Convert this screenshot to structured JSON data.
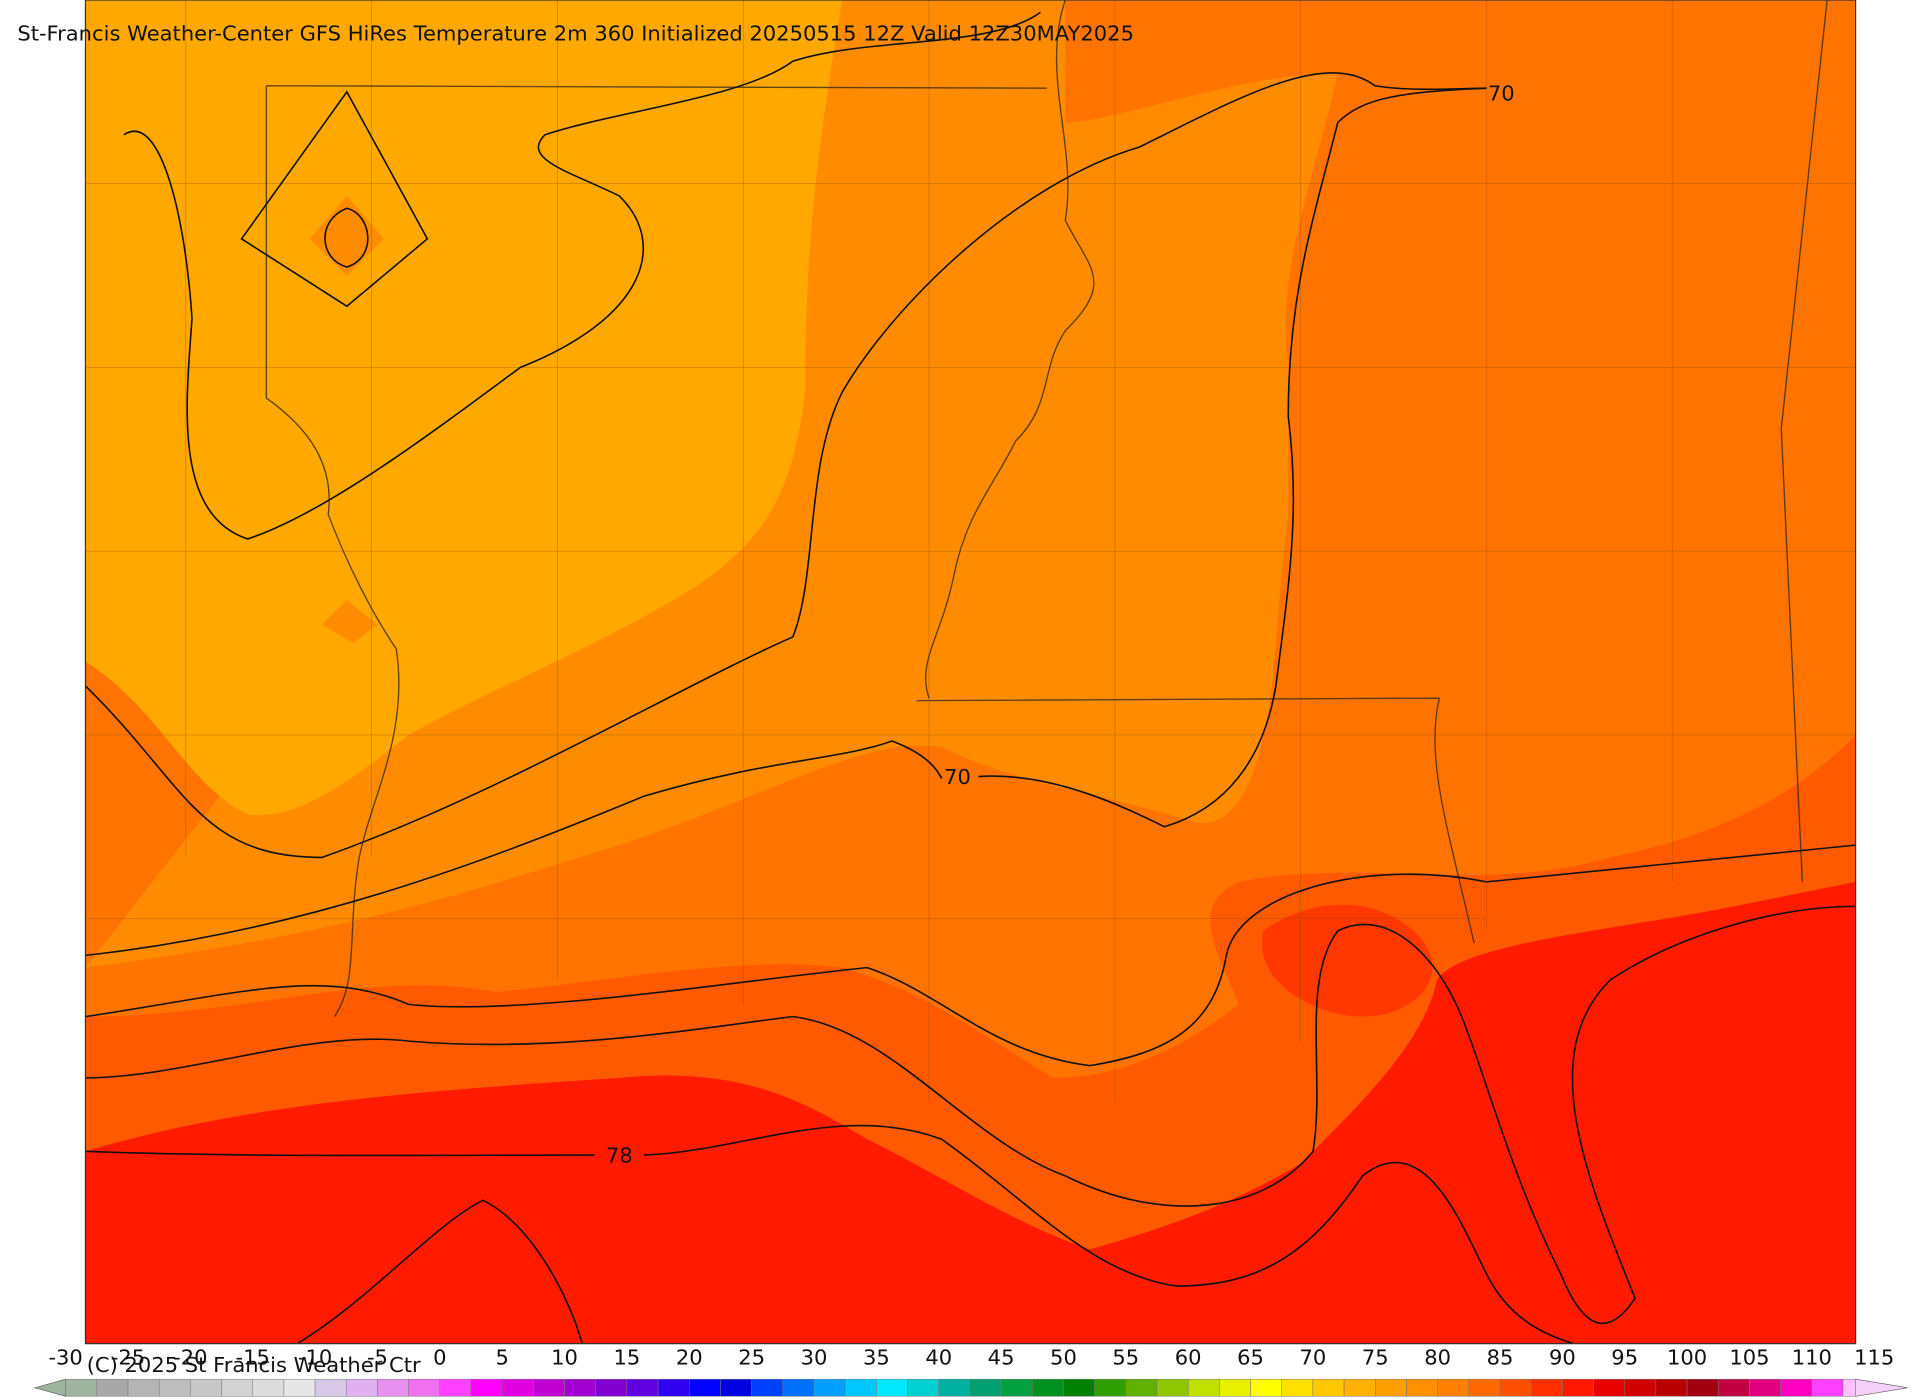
{
  "title": "St-Francis Weather-Center GFS HiRes Temperature 2m  360 Initialized 20250515 12Z Valid 12Z30MAY2025",
  "copyright": "(C) 2025 St Francis Weather Ctr",
  "contour_labels": [
    70,
    70,
    78
  ],
  "colorbar": {
    "lim": [
      -30,
      115
    ],
    "ticks": [
      -30,
      -25,
      -20,
      -15,
      -10,
      -5,
      0,
      5,
      10,
      15,
      20,
      25,
      30,
      35,
      40,
      45,
      50,
      55,
      60,
      65,
      70,
      75,
      80,
      85,
      90,
      95,
      100,
      105,
      110,
      115
    ],
    "colors": [
      "#9fb49f",
      "#a8a8a8",
      "#b4b4b4",
      "#bebebe",
      "#c8c8c8",
      "#d2d2d2",
      "#dcdcdc",
      "#e6e6e6",
      "#d8c8e8",
      "#e0b0f0",
      "#e890f0",
      "#f070f0",
      "#ff40ff",
      "#ff00ff",
      "#e000e0",
      "#c000d0",
      "#a000d0",
      "#8000d0",
      "#6000e0",
      "#3000f0",
      "#0000ff",
      "#0000e0",
      "#0040ff",
      "#0070ff",
      "#00a0ff",
      "#00c8ff",
      "#00e8ff",
      "#00d0d0",
      "#00b0a0",
      "#00a070",
      "#00a040",
      "#009020",
      "#008000",
      "#30a000",
      "#60b000",
      "#90c800",
      "#c0e000",
      "#e8f000",
      "#ffff00",
      "#ffe000",
      "#ffc800",
      "#ffb000",
      "#ffa000",
      "#ff9000",
      "#ff8000",
      "#ff6a00",
      "#ff5000",
      "#ff3000",
      "#ff1800",
      "#e80000",
      "#d00000",
      "#b80000",
      "#a00010",
      "#c00040",
      "#e00080",
      "#ff00c0",
      "#ff40ff",
      "#ffc0ff"
    ]
  }
}
